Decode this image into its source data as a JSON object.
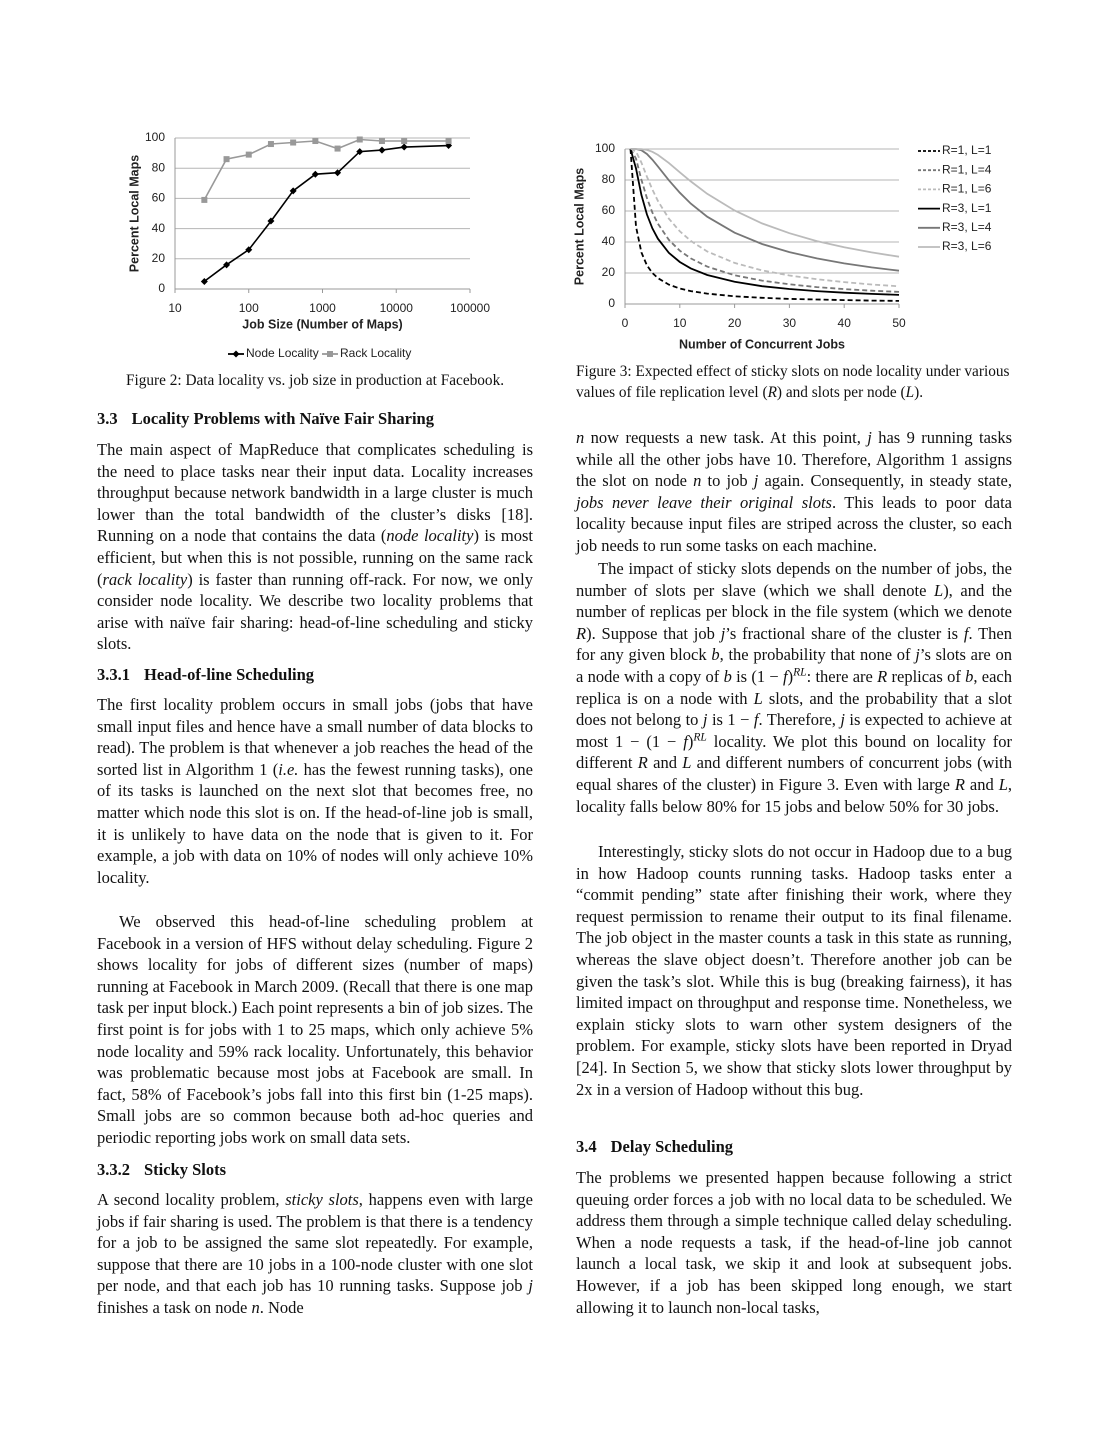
{
  "chart_data": [
    {
      "type": "line",
      "x_label": "Job Size (Number of Maps)",
      "y_label": "Percent Local Maps",
      "x": [
        25,
        50,
        100,
        200,
        400,
        800,
        1600,
        3200,
        6400,
        12800,
        51200
      ],
      "log_x": true,
      "xlim": [
        10,
        100000
      ],
      "xticks": [
        10,
        100,
        1000,
        10000,
        100000
      ],
      "ylim": [
        0,
        100
      ],
      "yticks": [
        0,
        20,
        40,
        60,
        80,
        100
      ],
      "grid": true,
      "legend": "bottom",
      "series": [
        {
          "name": "Node Locality",
          "color": "#000000",
          "marker": "diamond",
          "line_style": "solid",
          "values": [
            5,
            16,
            26,
            45,
            65,
            76,
            77,
            91,
            92,
            94,
            95
          ]
        },
        {
          "name": "Rack Locality",
          "color": "#999999",
          "marker": "square",
          "line_style": "solid",
          "values": [
            59,
            86,
            89,
            96,
            97,
            98,
            93,
            99,
            98,
            98,
            98
          ]
        }
      ]
    },
    {
      "type": "line",
      "x_label": "Number of Concurrent Jobs",
      "y_label": "Percent Local Maps",
      "x": [
        1,
        2,
        3,
        4,
        5,
        6,
        8,
        10,
        12,
        15,
        20,
        25,
        30,
        35,
        40,
        45,
        50
      ],
      "log_x": false,
      "xlim": [
        0,
        50
      ],
      "xticks": [
        0,
        10,
        20,
        30,
        40,
        50
      ],
      "ylim": [
        0,
        100
      ],
      "yticks": [
        0,
        20,
        40,
        60,
        80,
        100
      ],
      "grid": true,
      "legend": "right",
      "series": [
        {
          "name": "R=1, L=1",
          "color": "#000000",
          "marker": "none",
          "line_style": "dashed",
          "values": [
            100,
            50,
            33.3,
            25,
            20,
            16.7,
            12.5,
            10,
            8.3,
            6.7,
            5,
            4,
            3.3,
            2.9,
            2.5,
            2.2,
            2
          ]
        },
        {
          "name": "R=1, L=4",
          "color": "#777777",
          "marker": "none",
          "line_style": "dashed",
          "values": [
            100,
            93.8,
            80.2,
            68.4,
            59,
            51.8,
            41.4,
            34.4,
            29.4,
            24.1,
            18.5,
            15.1,
            12.7,
            10.9,
            9.6,
            8.6,
            7.8
          ]
        },
        {
          "name": "R=1, L=6",
          "color": "#bbbbbb",
          "marker": "none",
          "line_style": "dashed",
          "values": [
            100,
            98.4,
            91.2,
            82.2,
            73.8,
            66.5,
            55.1,
            46.9,
            40.7,
            33.9,
            26.5,
            21.7,
            18.4,
            16,
            14.1,
            12.6,
            11.4
          ]
        },
        {
          "name": "R=3, L=1",
          "color": "#000000",
          "marker": "none",
          "line_style": "solid",
          "values": [
            100,
            87.5,
            70.4,
            57.8,
            48.8,
            42.1,
            33,
            27.1,
            23,
            18.7,
            14.3,
            11.5,
            9.7,
            8.3,
            7.3,
            6.5,
            5.9
          ]
        },
        {
          "name": "R=3, L=4",
          "color": "#777777",
          "marker": "none",
          "line_style": "solid",
          "values": [
            100,
            100,
            99.2,
            96.8,
            93.1,
            88.8,
            79.9,
            71.8,
            64.8,
            56.3,
            46,
            38.7,
            33.5,
            29.4,
            26.2,
            23.6,
            21.5
          ]
        },
        {
          "name": "R=3, L=6",
          "color": "#bbbbbb",
          "marker": "none",
          "line_style": "solid",
          "values": [
            100,
            100,
            99.9,
            99.4,
            98.2,
            96.2,
            91,
            85,
            79.1,
            71.1,
            60.3,
            52,
            45.7,
            40.6,
            36.6,
            33.3,
            30.5
          ]
        }
      ]
    }
  ],
  "figure_captions": [
    [
      "Figure 2: Data locality vs. job size in production at Facebook."
    ],
    [
      "Figure 3: Expected effect of sticky slots on node locality under various values of file replication level (",
      {
        "text": "R",
        "style": "italic"
      },
      ") and slots per node (",
      {
        "text": "L",
        "style": "italic"
      },
      ")."
    ]
  ],
  "left_column": [
    {
      "number": "3.3",
      "title": "Locality Problems with Naïve Fair Sharing"
    },
    {
      "indent": false,
      "runs": [
        "The main aspect of MapReduce that complicates scheduling is the need to place tasks near their input data. Locality increases throughput because network bandwidth in a large cluster is much lower than the total bandwidth of the cluster’s disks [18]. Running on a node that contains the data (",
        {
          "text": "node locality",
          "style": "italic"
        },
        ") is most efficient, but when this is not possible, running on the same rack (",
        {
          "text": "rack locality",
          "style": "italic"
        },
        ") is faster than running off-rack. For now, we only consider node locality. We describe two locality problems that arise with naïve fair sharing: head-of-line scheduling and sticky slots."
      ]
    },
    {
      "number": "3.3.1",
      "title": "Head-of-line Scheduling"
    },
    {
      "indent": false,
      "runs": [
        "The first locality problem occurs in small jobs (jobs that have small input files and hence have a small number of data blocks to read). The problem is that whenever a job reaches the head of the sorted list in Algorithm 1 (",
        {
          "text": "i.e.",
          "style": "italic"
        },
        " has the fewest running tasks), one of its tasks is launched on the next slot that becomes free, no matter which node this slot is on. If the head-of-line job is small, it is unlikely to have data on the node that is given to it. For example, a job with data on 10% of nodes will only achieve 10% locality."
      ]
    },
    {
      "indent": true,
      "runs": [
        "We observed this head-of-line scheduling problem at Facebook in a version of HFS without delay scheduling. Figure 2 shows locality for jobs of different sizes (number of maps) running at Facebook in March 2009. (Recall that there is one map task per input block.) Each point represents a bin of job sizes. The first point is for jobs with 1 to 25 maps, which only achieve 5% node locality and 59% rack locality. Unfortunately, this behavior was problematic because most jobs at Facebook are small. In fact, 58% of Facebook’s jobs fall into this first bin (1-25 maps). Small jobs are so common because both ad-hoc queries and periodic reporting jobs work on small data sets."
      ]
    },
    {
      "number": "3.3.2",
      "title": "Sticky Slots"
    },
    {
      "indent": false,
      "runs": [
        "A second locality problem, ",
        {
          "text": "sticky slots",
          "style": "italic"
        },
        ", happens even with large jobs if fair sharing is used. The problem is that there is a tendency for a job to be assigned the same slot repeatedly. For example, suppose that there are 10 jobs in a 100-node cluster with one slot per node, and that each job has 10 running tasks. Suppose job ",
        {
          "text": "j",
          "style": "italic"
        },
        " finishes a task on node ",
        {
          "text": "n",
          "style": "italic"
        },
        ". Node"
      ]
    }
  ],
  "right_column": [
    {
      "indent": false,
      "runs": [
        {
          "text": "n",
          "style": "italic"
        },
        " now requests a new task. At this point, ",
        {
          "text": "j",
          "style": "italic"
        },
        " has 9 running tasks while all the other jobs have 10. Therefore, Algorithm 1 assigns the slot on node ",
        {
          "text": "n",
          "style": "italic"
        },
        " to job ",
        {
          "text": "j",
          "style": "italic"
        },
        " again. Consequently, in steady state, ",
        {
          "text": "jobs never leave their original slots",
          "style": "italic"
        },
        ". This leads to poor data locality because input files are striped across the cluster, so each job needs to run some tasks on each machine."
      ]
    },
    {
      "indent": true,
      "runs": [
        "The impact of sticky slots depends on the number of jobs, the number of slots per slave (which we shall denote ",
        {
          "text": "L",
          "style": "italic"
        },
        "), and the number of replicas per block in the file system (which we denote ",
        {
          "text": "R",
          "style": "italic"
        },
        "). Suppose that job ",
        {
          "text": "j",
          "style": "italic"
        },
        "’s fractional share of the cluster is ",
        {
          "text": "f",
          "style": "italic"
        },
        ". Then for any given block ",
        {
          "text": "b",
          "style": "italic"
        },
        ", the probability that none of ",
        {
          "text": "j",
          "style": "italic"
        },
        "’s slots are on a node with a copy of ",
        {
          "text": "b",
          "style": "italic"
        },
        " is (1 − ",
        {
          "text": "f",
          "style": "italic"
        },
        ")",
        {
          "text": "RL",
          "style": "sup"
        },
        ": there are ",
        {
          "text": "R",
          "style": "italic"
        },
        " replicas of ",
        {
          "text": "b",
          "style": "italic"
        },
        ", each replica is on a node with ",
        {
          "text": "L",
          "style": "italic"
        },
        " slots, and the probability that a slot does not belong to ",
        {
          "text": "j",
          "style": "italic"
        },
        " is 1 − ",
        {
          "text": "f",
          "style": "italic"
        },
        ". Therefore, ",
        {
          "text": "j",
          "style": "italic"
        },
        " is expected to achieve at most 1 − (1 − ",
        {
          "text": "f",
          "style": "italic"
        },
        ")",
        {
          "text": "RL",
          "style": "sup"
        },
        " locality. We plot this bound on locality for different ",
        {
          "text": "R",
          "style": "italic"
        },
        " and ",
        {
          "text": "L",
          "style": "italic"
        },
        " and different numbers of concurrent jobs (with equal shares of the cluster) in Figure 3. Even with large ",
        {
          "text": "R",
          "style": "italic"
        },
        " and ",
        {
          "text": "L",
          "style": "italic"
        },
        ", locality falls below 80% for 15 jobs and below 50% for 30 jobs."
      ]
    },
    {
      "indent": true,
      "runs": [
        "Interestingly, sticky slots do not occur in Hadoop due to a bug in how Hadoop counts running tasks. Hadoop tasks enter a “commit pending” state after finishing their work, where they request permission to rename their output to its final filename. The job object in the master counts a task in this state as running, whereas the slave object doesn’t. Therefore another job can be given the task’s slot. While this is bug (breaking fairness), it has limited impact on throughput and response time. Nonetheless, we explain sticky slots to warn other system designers of the problem. For example, sticky slots have been reported in Dryad [24]. In Section 5, we show that sticky slots lower throughput by 2x in a version of Hadoop without this bug."
      ]
    },
    {
      "number": "3.4",
      "title": "Delay Scheduling"
    },
    {
      "indent": false,
      "runs": [
        "The problems we presented happen because following a strict queuing order forces a job with no local data to be scheduled. We address them through a simple technique called delay scheduling. When a node requests a task, if the head-of-line job cannot launch a local task, we skip it and look at subsequent jobs. However, if a job has been skipped long enough, we start allowing it to launch non-local tasks,"
      ]
    }
  ]
}
